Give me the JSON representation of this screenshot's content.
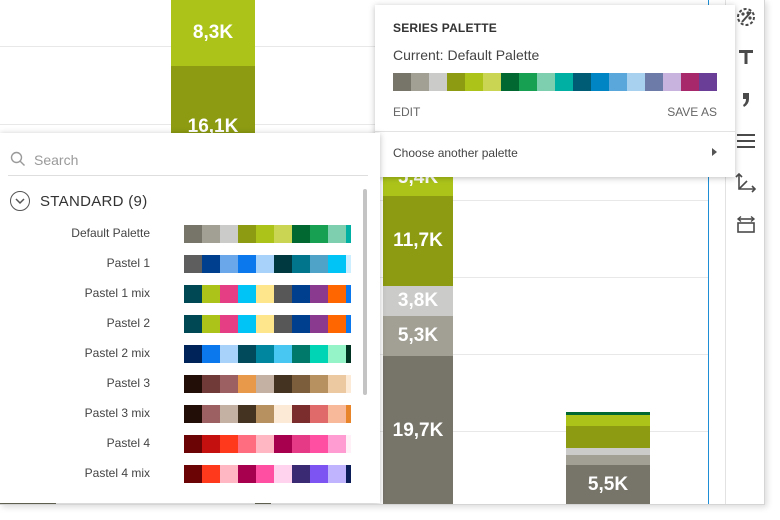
{
  "chart": {
    "labels": [
      "8,3K",
      "16,1K",
      "5,4K",
      "11,7K",
      "3,8K",
      "5,3K",
      "19,7K",
      "5,5K"
    ]
  },
  "toolbar": {
    "tools": [
      "palette-icon",
      "text-icon",
      "comma-icon",
      "lines-icon",
      "axes-icon",
      "resize-icon"
    ]
  },
  "series_palette": {
    "title": "SERIES PALETTE",
    "current": "Current: Default Palette",
    "colors": [
      "#77756a",
      "#a2a094",
      "#cbcbc9",
      "#8c9b12",
      "#acc41a",
      "#cbd554",
      "#006830",
      "#17a051",
      "#7ecfaf",
      "#00b1a3",
      "#005c74",
      "#0085c4",
      "#5aa7dc",
      "#a8d1ef",
      "#6c7ba8",
      "#c7b3de",
      "#a7296c",
      "#6a3e96"
    ],
    "edit_label": "EDIT",
    "save_as_label": "SAVE AS",
    "choose_label": "Choose another palette"
  },
  "palette_list": {
    "search_placeholder": "Search",
    "group_label": "STANDARD (9)",
    "palettes": [
      {
        "name": "Default Palette",
        "colors": [
          "#77756a",
          "#a2a094",
          "#cbcbc9",
          "#8c9b12",
          "#acc41a",
          "#cbd554",
          "#006830",
          "#17a051",
          "#7ecfaf",
          "#00b1a3"
        ]
      },
      {
        "name": "Pastel 1",
        "colors": [
          "#5e5e5e",
          "#003f8e",
          "#6aa7ea",
          "#0b78ee",
          "#a9d2fb",
          "#00393f",
          "#00758c",
          "#4fa3c8",
          "#00c3f6",
          "#cdeeff"
        ]
      },
      {
        "name": "Pastel 1 mix",
        "colors": [
          "#004853",
          "#acc41a",
          "#e63e84",
          "#00c3f6",
          "#fde68c",
          "#575757",
          "#003f8e",
          "#8a3b8f",
          "#ff6600",
          "#0b78ee"
        ]
      },
      {
        "name": "Pastel 2",
        "colors": [
          "#004853",
          "#acc41a",
          "#e63e84",
          "#00c3f6",
          "#fde68c",
          "#575757",
          "#003f8e",
          "#8a3b8f",
          "#ff6600",
          "#0b78ee"
        ]
      },
      {
        "name": "Pastel 2 mix",
        "colors": [
          "#00235a",
          "#0b78ee",
          "#a9d2fb",
          "#004a5c",
          "#00869f",
          "#49c7f3",
          "#00796b",
          "#00d6b5",
          "#96f5c8",
          "#003322"
        ]
      },
      {
        "name": "Pastel 3",
        "colors": [
          "#220d07",
          "#6f3a37",
          "#9c6062",
          "#e8994a",
          "#c5b1a4",
          "#433320",
          "#7c5e3c",
          "#b89160",
          "#ecc9a0",
          "#fce9d6"
        ]
      },
      {
        "name": "Pastel 3 mix",
        "colors": [
          "#220d07",
          "#9c6062",
          "#c5b1a4",
          "#433320",
          "#b89160",
          "#fce9d6",
          "#7b2d2e",
          "#e06a6a",
          "#f8b89a",
          "#e8842a"
        ]
      },
      {
        "name": "Pastel 4",
        "colors": [
          "#6b0505",
          "#c4110f",
          "#ff3a1c",
          "#ff6e80",
          "#ffb7c3",
          "#a7004e",
          "#e53a86",
          "#ff4fa3",
          "#ff9cd2",
          "#fff0f7"
        ]
      },
      {
        "name": "Pastel 4 mix",
        "colors": [
          "#6b0505",
          "#ff3a1c",
          "#ffb7c3",
          "#a7004e",
          "#ff4fa3",
          "#ffd2ee",
          "#3a2a74",
          "#7d54f2",
          "#c0b4ff",
          "#0c1e5a"
        ]
      }
    ]
  }
}
